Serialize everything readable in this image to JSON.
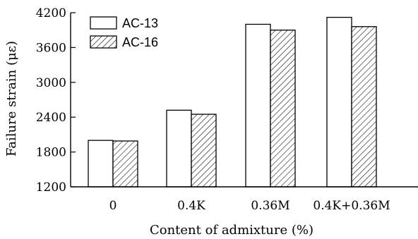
{
  "chart_data": {
    "type": "bar",
    "xlabel": "Content of admixture (%)",
    "ylabel": "Failure strain (με)",
    "ylim": [
      1200,
      4200
    ],
    "yticks": [
      1200,
      1800,
      2400,
      3000,
      3600,
      4200
    ],
    "categories": [
      "0",
      "0.4K",
      "0.36M",
      "0.4K+0.36M"
    ],
    "series": [
      {
        "name": "AC-13",
        "fill": "white",
        "values": [
          2000,
          2520,
          4000,
          4120
        ]
      },
      {
        "name": "AC-16",
        "fill": "hatched",
        "values": [
          1990,
          2450,
          3900,
          3960
        ]
      }
    ],
    "legend": "top-left",
    "grid": false
  }
}
